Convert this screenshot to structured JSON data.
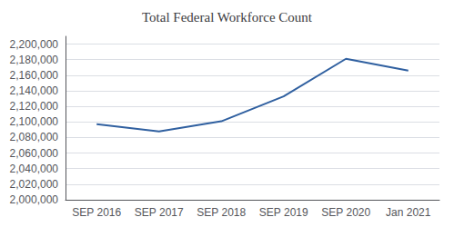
{
  "chart_data": {
    "type": "line",
    "title": "Total Federal Workforce Count",
    "categories": [
      "SEP 2016",
      "SEP 2017",
      "SEP 2018",
      "SEP 2019",
      "SEP 2020",
      "Jan 2021"
    ],
    "values": [
      2097038,
      2087747,
      2100802,
      2132812,
      2181106,
      2166000
    ],
    "color": "#3060a0",
    "ylim": [
      2000000,
      2210000
    ],
    "yticks": [
      {
        "value": 2000000,
        "label": "2,000,000"
      },
      {
        "value": 2020000,
        "label": "2,020,000"
      },
      {
        "value": 2040000,
        "label": "2,040,000"
      },
      {
        "value": 2060000,
        "label": "2,060,000"
      },
      {
        "value": 2080000,
        "label": "2,080,000"
      },
      {
        "value": 2100000,
        "label": "2,100,000"
      },
      {
        "value": 2120000,
        "label": "2,120,000"
      },
      {
        "value": 2140000,
        "label": "2,140,000"
      },
      {
        "value": 2160000,
        "label": "2,160,000"
      },
      {
        "value": 2180000,
        "label": "2,180,000"
      },
      {
        "value": 2200000,
        "label": "2,200,000"
      }
    ],
    "grid": true
  }
}
